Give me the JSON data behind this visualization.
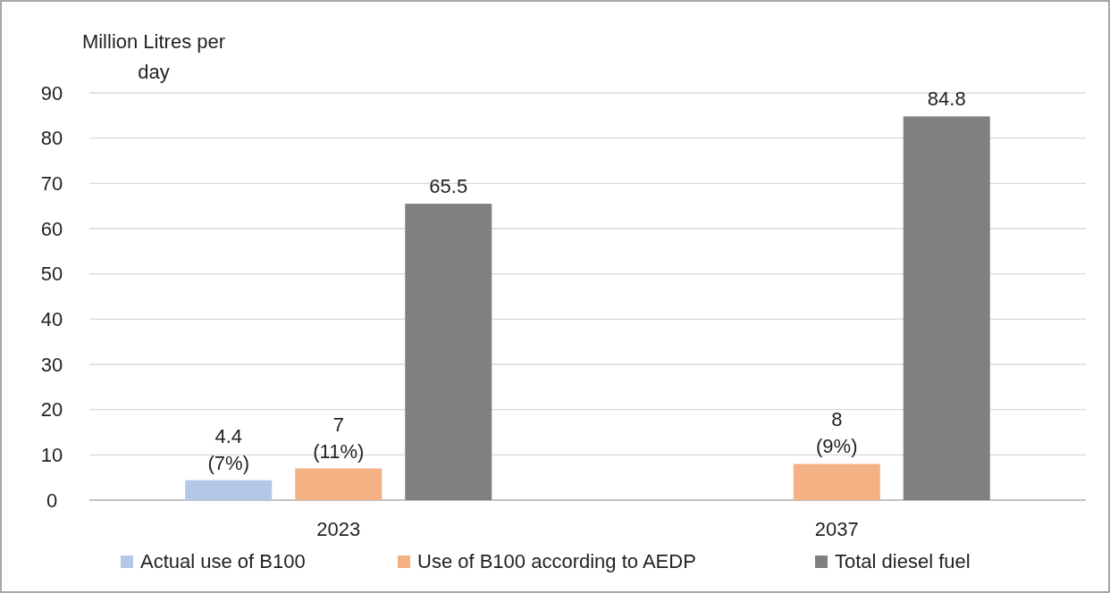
{
  "chart_data": {
    "type": "bar",
    "ylabel": "Million Litres per day",
    "categories": [
      "2023",
      "2037"
    ],
    "series": [
      {
        "name": "Actual use of B100",
        "color": "#b4c7e7",
        "values": [
          4.4,
          null
        ],
        "value_labels": [
          "4.4 (7%)",
          null
        ]
      },
      {
        "name": "Use of B100 according to AEDP",
        "color": "#f4b183",
        "values": [
          7,
          8
        ],
        "value_labels": [
          "7 (11%)",
          "8 (9%)"
        ]
      },
      {
        "name": "Total diesel fuel",
        "color": "#808080",
        "values": [
          65.5,
          84.8
        ],
        "value_labels": [
          "65.5",
          "84.8"
        ]
      }
    ],
    "ylim": [
      0,
      90
    ],
    "yticks": [
      0,
      10,
      20,
      30,
      40,
      50,
      60,
      70,
      80,
      90
    ],
    "grid": "y",
    "legend": "bottom"
  }
}
